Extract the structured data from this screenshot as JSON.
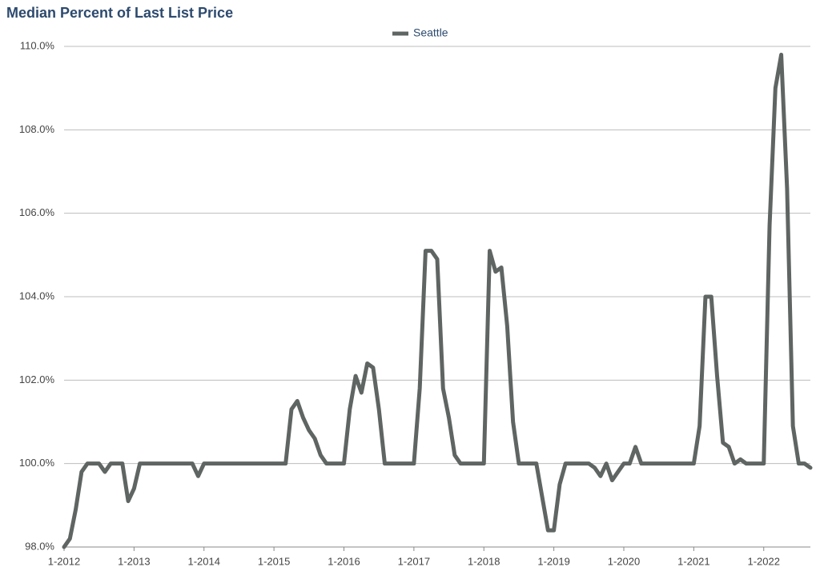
{
  "chart_data": {
    "type": "line",
    "title": "Median Percent of Last List Price",
    "categories": [
      "1-2012",
      null,
      null,
      null,
      null,
      null,
      null,
      null,
      null,
      null,
      null,
      null,
      "1-2013",
      null,
      null,
      null,
      null,
      null,
      null,
      null,
      null,
      null,
      null,
      null,
      "1-2014",
      null,
      null,
      null,
      null,
      null,
      null,
      null,
      null,
      null,
      null,
      null,
      "1-2015",
      null,
      null,
      null,
      null,
      null,
      null,
      null,
      null,
      null,
      null,
      null,
      "1-2016",
      null,
      null,
      null,
      null,
      null,
      null,
      null,
      null,
      null,
      null,
      null,
      "1-2017",
      null,
      null,
      null,
      null,
      null,
      null,
      null,
      null,
      null,
      null,
      null,
      "1-2018",
      null,
      null,
      null,
      null,
      null,
      null,
      null,
      null,
      null,
      null,
      null,
      "1-2019",
      null,
      null,
      null,
      null,
      null,
      null,
      null,
      null,
      null,
      null,
      null,
      "1-2020",
      null,
      null,
      null,
      null,
      null,
      null,
      null,
      null,
      null,
      null,
      null,
      "1-2021",
      null,
      null,
      null,
      null,
      null,
      null,
      null,
      null,
      null,
      null,
      null,
      "1-2022",
      null,
      null,
      null,
      null,
      null,
      null,
      null,
      null
    ],
    "series": [
      {
        "name": "Seattle",
        "color": "#5f6563",
        "values": [
          98.0,
          98.2,
          98.9,
          99.8,
          100.0,
          100.0,
          100.0,
          99.8,
          100.0,
          100.0,
          100.0,
          99.1,
          99.4,
          100.0,
          100.0,
          100.0,
          100.0,
          100.0,
          100.0,
          100.0,
          100.0,
          100.0,
          100.0,
          99.7,
          100.0,
          100.0,
          100.0,
          100.0,
          100.0,
          100.0,
          100.0,
          100.0,
          100.0,
          100.0,
          100.0,
          100.0,
          100.0,
          100.0,
          100.0,
          101.3,
          101.5,
          101.1,
          100.8,
          100.6,
          100.2,
          100.0,
          100.0,
          100.0,
          100.0,
          101.3,
          102.1,
          101.7,
          102.4,
          102.3,
          101.3,
          100.0,
          100.0,
          100.0,
          100.0,
          100.0,
          100.0,
          101.8,
          105.1,
          105.1,
          104.9,
          101.8,
          101.1,
          100.2,
          100.0,
          100.0,
          100.0,
          100.0,
          100.0,
          105.1,
          104.6,
          104.7,
          103.3,
          101.0,
          100.0,
          100.0,
          100.0,
          100.0,
          99.2,
          98.4,
          98.4,
          99.5,
          100.0,
          100.0,
          100.0,
          100.0,
          100.0,
          99.9,
          99.7,
          100.0,
          99.6,
          99.8,
          100.0,
          100.0,
          100.4,
          100.0,
          100.0,
          100.0,
          100.0,
          100.0,
          100.0,
          100.0,
          100.0,
          100.0,
          100.0,
          100.9,
          104.0,
          104.0,
          102.1,
          100.5,
          100.4,
          100.0,
          100.1,
          100.0,
          100.0,
          100.0,
          100.0,
          105.7,
          109.0,
          109.8,
          106.6,
          100.9,
          100.0,
          100.0,
          99.9
        ]
      }
    ],
    "ylim": [
      98,
      110
    ],
    "yticks": [
      {
        "value": 98,
        "label": "98.0%"
      },
      {
        "value": 100,
        "label": "100.0%"
      },
      {
        "value": 102,
        "label": "102.0%"
      },
      {
        "value": 104,
        "label": "104.0%"
      },
      {
        "value": 106,
        "label": "106.0%"
      },
      {
        "value": 108,
        "label": "108.0%"
      },
      {
        "value": 110,
        "label": "110.0%"
      }
    ],
    "grid": true,
    "legend": "top"
  }
}
